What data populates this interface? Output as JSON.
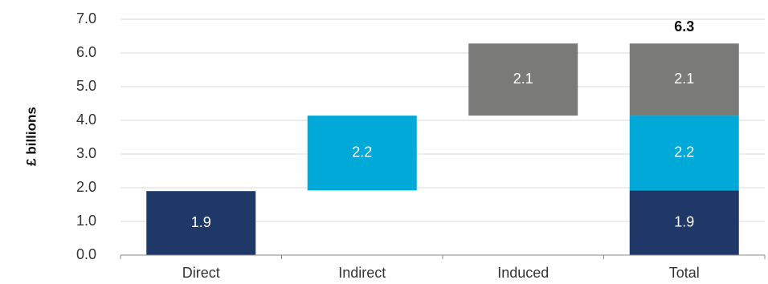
{
  "chart_data": {
    "type": "bar",
    "subtype": "waterfall",
    "ylabel": "£ billions",
    "xlabel": "",
    "ylim": [
      0,
      7
    ],
    "yticks": [
      "0.0",
      "1.0",
      "2.0",
      "3.0",
      "4.0",
      "5.0",
      "6.0",
      "7.0"
    ],
    "grid": true,
    "categories": [
      "Direct",
      "Indirect",
      "Induced",
      "Total"
    ],
    "segments": [
      {
        "category": "Direct",
        "start": 0.0,
        "value": 1.9,
        "label": "1.9",
        "color": "#1f3868"
      },
      {
        "category": "Indirect",
        "start": 1.92,
        "value": 2.22,
        "label": "2.2",
        "color": "#00a9d8"
      },
      {
        "category": "Induced",
        "start": 4.14,
        "value": 2.14,
        "label": "2.1",
        "color": "#7a7a76"
      },
      {
        "category": "Total",
        "start": 0.0,
        "value": 1.92,
        "label": "1.9",
        "color": "#1f3868"
      },
      {
        "category": "Total",
        "start": 1.92,
        "value": 2.22,
        "label": "2.2",
        "color": "#00a9d8"
      },
      {
        "category": "Total",
        "start": 4.14,
        "value": 2.14,
        "label": "2.1",
        "color": "#7a7a76"
      }
    ],
    "total": {
      "category": "Total",
      "value": 6.28,
      "label": "6.3"
    }
  }
}
